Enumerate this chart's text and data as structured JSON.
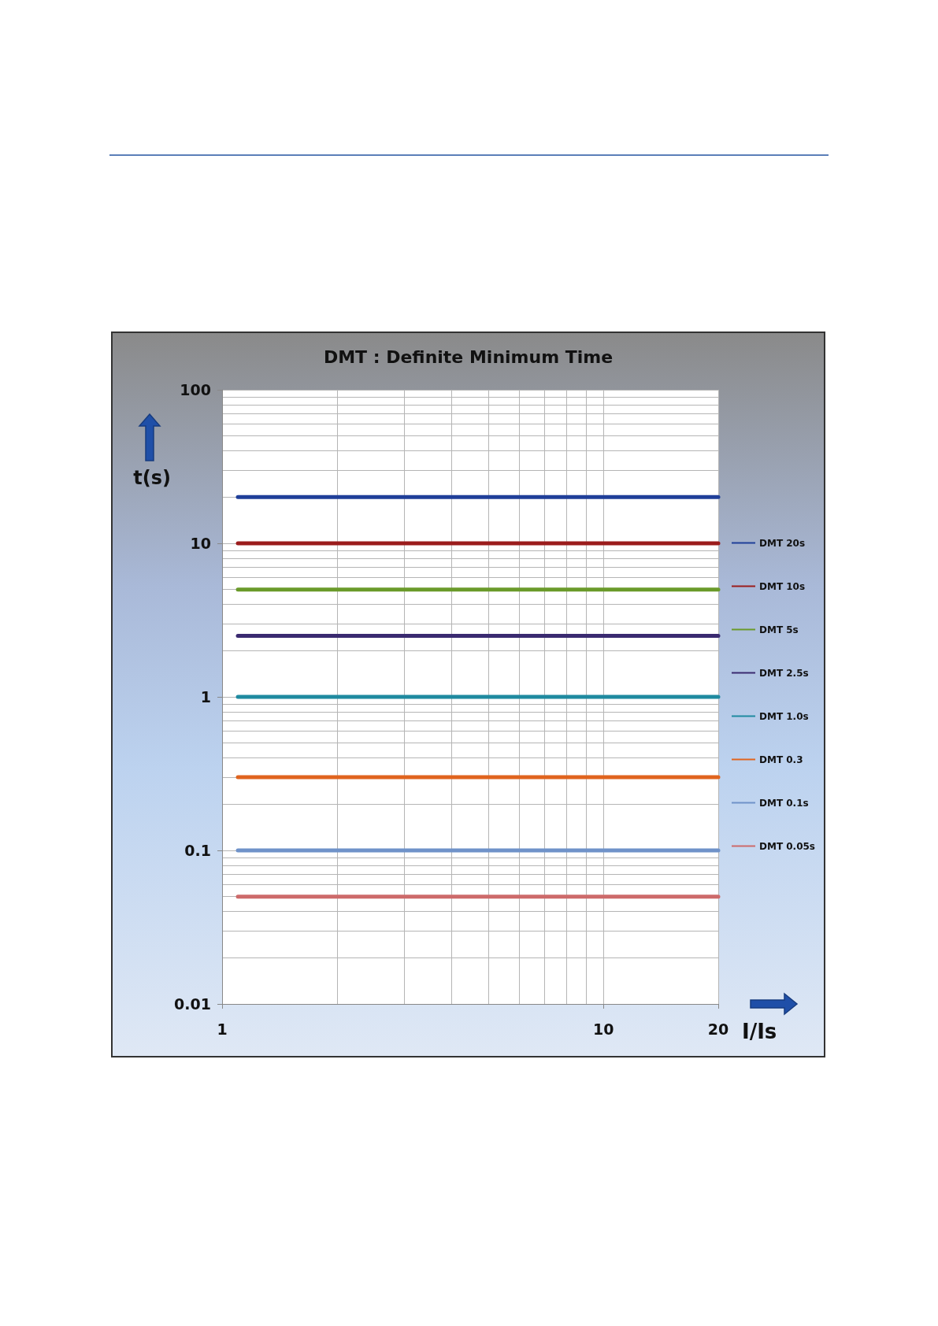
{
  "chart_data": {
    "type": "line",
    "title": "DMT : Definite Minimum Time",
    "xlabel": "I/Is",
    "ylabel": "t(s)",
    "log": "xy",
    "xlim": [
      1,
      20
    ],
    "xticks": [
      1,
      10,
      20
    ],
    "ylim": [
      0.01,
      100
    ],
    "yticks": [
      0.01,
      0.1,
      1,
      10,
      100
    ],
    "grid": true,
    "legend": "right",
    "marker": "none",
    "line_style": "solid",
    "x": [
      1.1,
      20
    ],
    "series": [
      {
        "name": "DMT 20s",
        "color": "#1f3f99",
        "values": [
          20,
          20
        ]
      },
      {
        "name": "DMT 10s",
        "color": "#9b1c1c",
        "values": [
          10,
          10
        ]
      },
      {
        "name": "DMT 5s",
        "color": "#6a9a2a",
        "values": [
          5,
          5
        ]
      },
      {
        "name": "DMT 2.5s",
        "color": "#3a2a70",
        "values": [
          2.5,
          2.5
        ]
      },
      {
        "name": "DMT 1.0s",
        "color": "#1f8aa0",
        "values": [
          1,
          1
        ]
      },
      {
        "name": "DMT 0.3",
        "color": "#e0641e",
        "values": [
          0.3,
          0.3
        ]
      },
      {
        "name": "DMT 0.1s",
        "color": "#6f92c9",
        "values": [
          0.1,
          0.1
        ]
      },
      {
        "name": "DMT 0.05s",
        "color": "#cd6a6a",
        "values": [
          0.05,
          0.05
        ]
      }
    ]
  }
}
